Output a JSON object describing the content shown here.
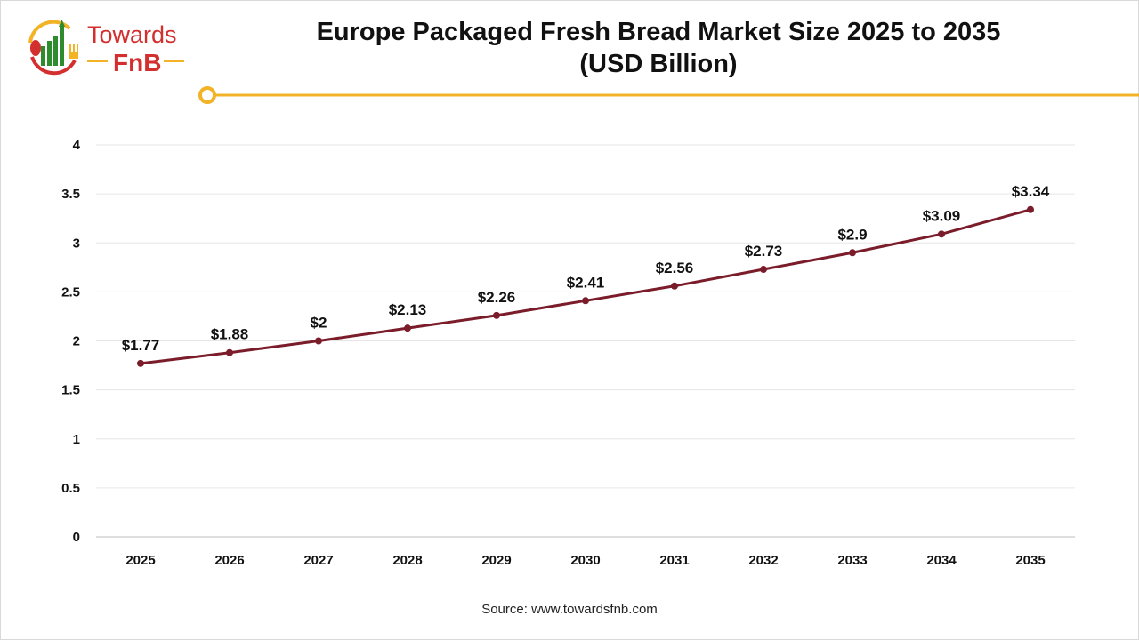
{
  "logo": {
    "line1": "Towards",
    "line2": "FnB"
  },
  "title_line1": "Europe Packaged Fresh Bread Market Size 2025 to 2035",
  "title_line2": "(USD Billion)",
  "source": "Source: www.towardsfnb.com",
  "colors": {
    "line": "#7b1c2a",
    "accent": "#f2b327",
    "logo_red": "#d32f2f",
    "logo_green": "#2e8b2e"
  },
  "chart_data": {
    "type": "line",
    "title": "Europe Packaged Fresh Bread Market Size 2025 to 2035 (USD Billion)",
    "categories": [
      "2025",
      "2026",
      "2027",
      "2028",
      "2029",
      "2030",
      "2031",
      "2032",
      "2033",
      "2034",
      "2035"
    ],
    "values": [
      1.77,
      1.88,
      2.0,
      2.13,
      2.26,
      2.41,
      2.56,
      2.73,
      2.9,
      3.09,
      3.34
    ],
    "data_labels": [
      "$1.77",
      "$1.88",
      "$2",
      "$2.13",
      "$2.26",
      "$2.41",
      "$2.56",
      "$2.73",
      "$2.9",
      "$3.09",
      "$3.34"
    ],
    "yticks": [
      "0",
      "0.5",
      "1",
      "1.5",
      "2",
      "2.5",
      "3",
      "3.5",
      "4"
    ],
    "ylim": [
      0,
      4
    ],
    "grid": true,
    "legend": "none"
  }
}
